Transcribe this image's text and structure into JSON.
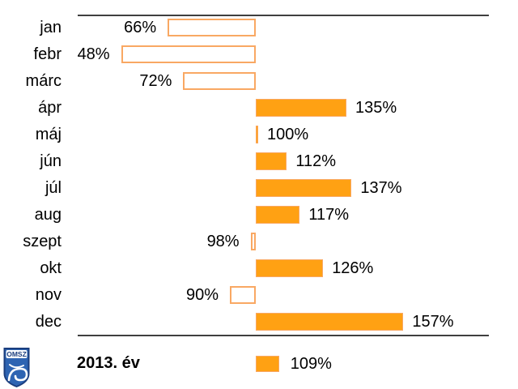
{
  "chart_data": {
    "type": "bar",
    "orientation": "horizontal",
    "title": "",
    "xlabel": "",
    "ylabel": "",
    "grid": false,
    "legend_position": "bottom",
    "reference_value": 100,
    "categories": [
      "jan",
      "febr",
      "márc",
      "ápr",
      "máj",
      "jún",
      "júl",
      "aug",
      "szept",
      "okt",
      "nov",
      "dec"
    ],
    "values": [
      66,
      48,
      72,
      135,
      100,
      112,
      137,
      117,
      98,
      126,
      90,
      157
    ],
    "value_labels": [
      "66%",
      "48%",
      "72%",
      "135%",
      "100%",
      "112%",
      "137%",
      "117%",
      "98%",
      "126%",
      "90%",
      "157%"
    ],
    "annual": {
      "value": 109,
      "label": "109%"
    },
    "styles": {
      "bar_fill": "#FFA113",
      "bar_border": "#F9A863",
      "below_reference_fill": "#FFFFFF",
      "rule_color": "#3F3F3F",
      "text_color": "#000000"
    }
  },
  "footer": {
    "year_label": "2013. év"
  },
  "logo": {
    "text": "OMSZ",
    "shield_border": "#1B3E7E",
    "shield_fill": "#2E64B2",
    "band_fill": "#FFFFFF"
  }
}
